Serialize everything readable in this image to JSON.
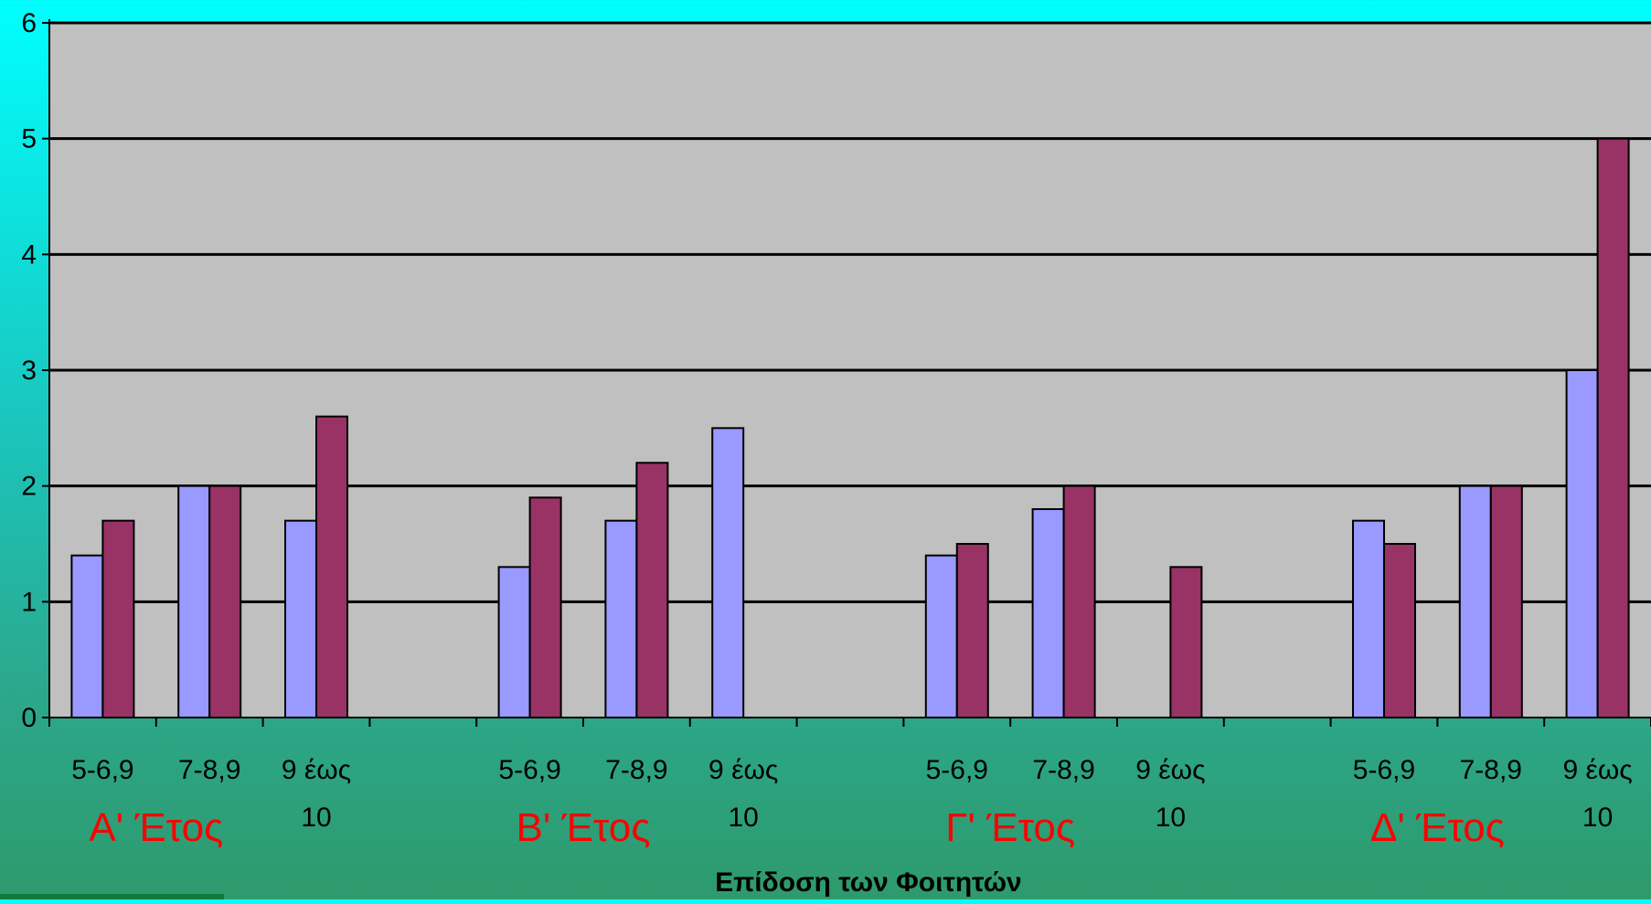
{
  "colors": {
    "series_a": "#9999ff",
    "series_b": "#993366",
    "plot_area": "#c0c0c0",
    "grid": "#000000",
    "group_label": "#ff0000",
    "text": "#000000"
  },
  "chart_data": {
    "type": "bar",
    "title": "",
    "xlabel": "Επίδοση των Φοιτητών",
    "ylabel": "",
    "ylim": [
      0,
      6
    ],
    "yticks": [
      "0",
      "1",
      "2",
      "3",
      "4",
      "5",
      "6"
    ],
    "grid": true,
    "legend": "none",
    "groups": [
      {
        "label": "Α' Έτος",
        "categories": [
          "5-6,9",
          "7-8,9",
          "9 έως 10"
        ],
        "series_a": [
          1.4,
          2.0,
          1.7
        ],
        "series_b": [
          1.7,
          2.0,
          2.6
        ]
      },
      {
        "label": "Β' Έτος",
        "categories": [
          "5-6,9",
          "7-8,9",
          "9 έως 10"
        ],
        "series_a": [
          1.3,
          1.7,
          2.5
        ],
        "series_b": [
          1.9,
          2.2,
          0
        ]
      },
      {
        "label": "Γ' Έτος",
        "categories": [
          "5-6,9",
          "7-8,9",
          "9 έως 10"
        ],
        "series_a": [
          1.4,
          1.8,
          0
        ],
        "series_b": [
          1.5,
          2.0,
          1.3
        ]
      },
      {
        "label": "Δ' Έτος",
        "categories": [
          "5-6,9",
          "7-8,9",
          "9 έως 10"
        ],
        "series_a": [
          1.7,
          2.0,
          3.0
        ],
        "series_b": [
          1.5,
          2.0,
          5.0
        ]
      }
    ]
  }
}
